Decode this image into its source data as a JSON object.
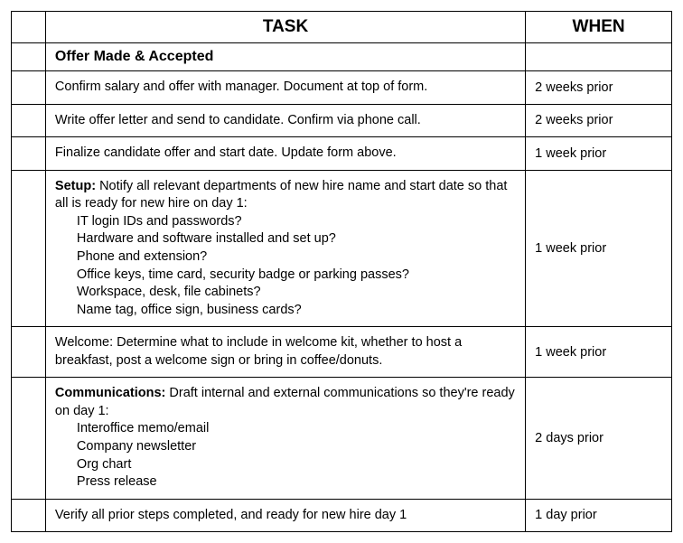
{
  "header": {
    "task": "TASK",
    "when": "WHEN"
  },
  "section": {
    "title": "Offer Made & Accepted"
  },
  "rows": [
    {
      "task": "Confirm salary and offer with manager. Document at top of form.",
      "when": "2 weeks prior"
    },
    {
      "task": "Write offer letter and send to candidate. Confirm via phone call.",
      "when": "2 weeks prior"
    },
    {
      "task": "Finalize candidate offer and start date. Update form above.",
      "when": "1 week prior"
    },
    {
      "lead_bold": "Setup: ",
      "lead_rest": "Notify all relevant departments of new hire name and start date so that all is ready for new hire on day 1:",
      "items": [
        "IT login IDs and passwords?",
        "Hardware and software installed and set up?",
        "Phone and extension?",
        "Office keys, time card, security badge or parking passes?",
        "Workspace, desk, file cabinets?",
        "Name tag, office sign, business cards?"
      ],
      "when": "1 week prior"
    },
    {
      "task": "Welcome: Determine what to include in welcome kit, whether to host a breakfast, post a welcome sign or bring in coffee/donuts.",
      "when": "1 week prior"
    },
    {
      "lead_bold": "Communications: ",
      "lead_rest": "Draft internal and external communica­tions so they're ready on day 1:",
      "items": [
        "Interoffice memo/email",
        "Company newsletter",
        "Org chart",
        "Press release"
      ],
      "when": "2 days prior"
    },
    {
      "task": "Verify all prior steps completed, and ready for new hire day 1",
      "when": "1 day prior"
    }
  ]
}
